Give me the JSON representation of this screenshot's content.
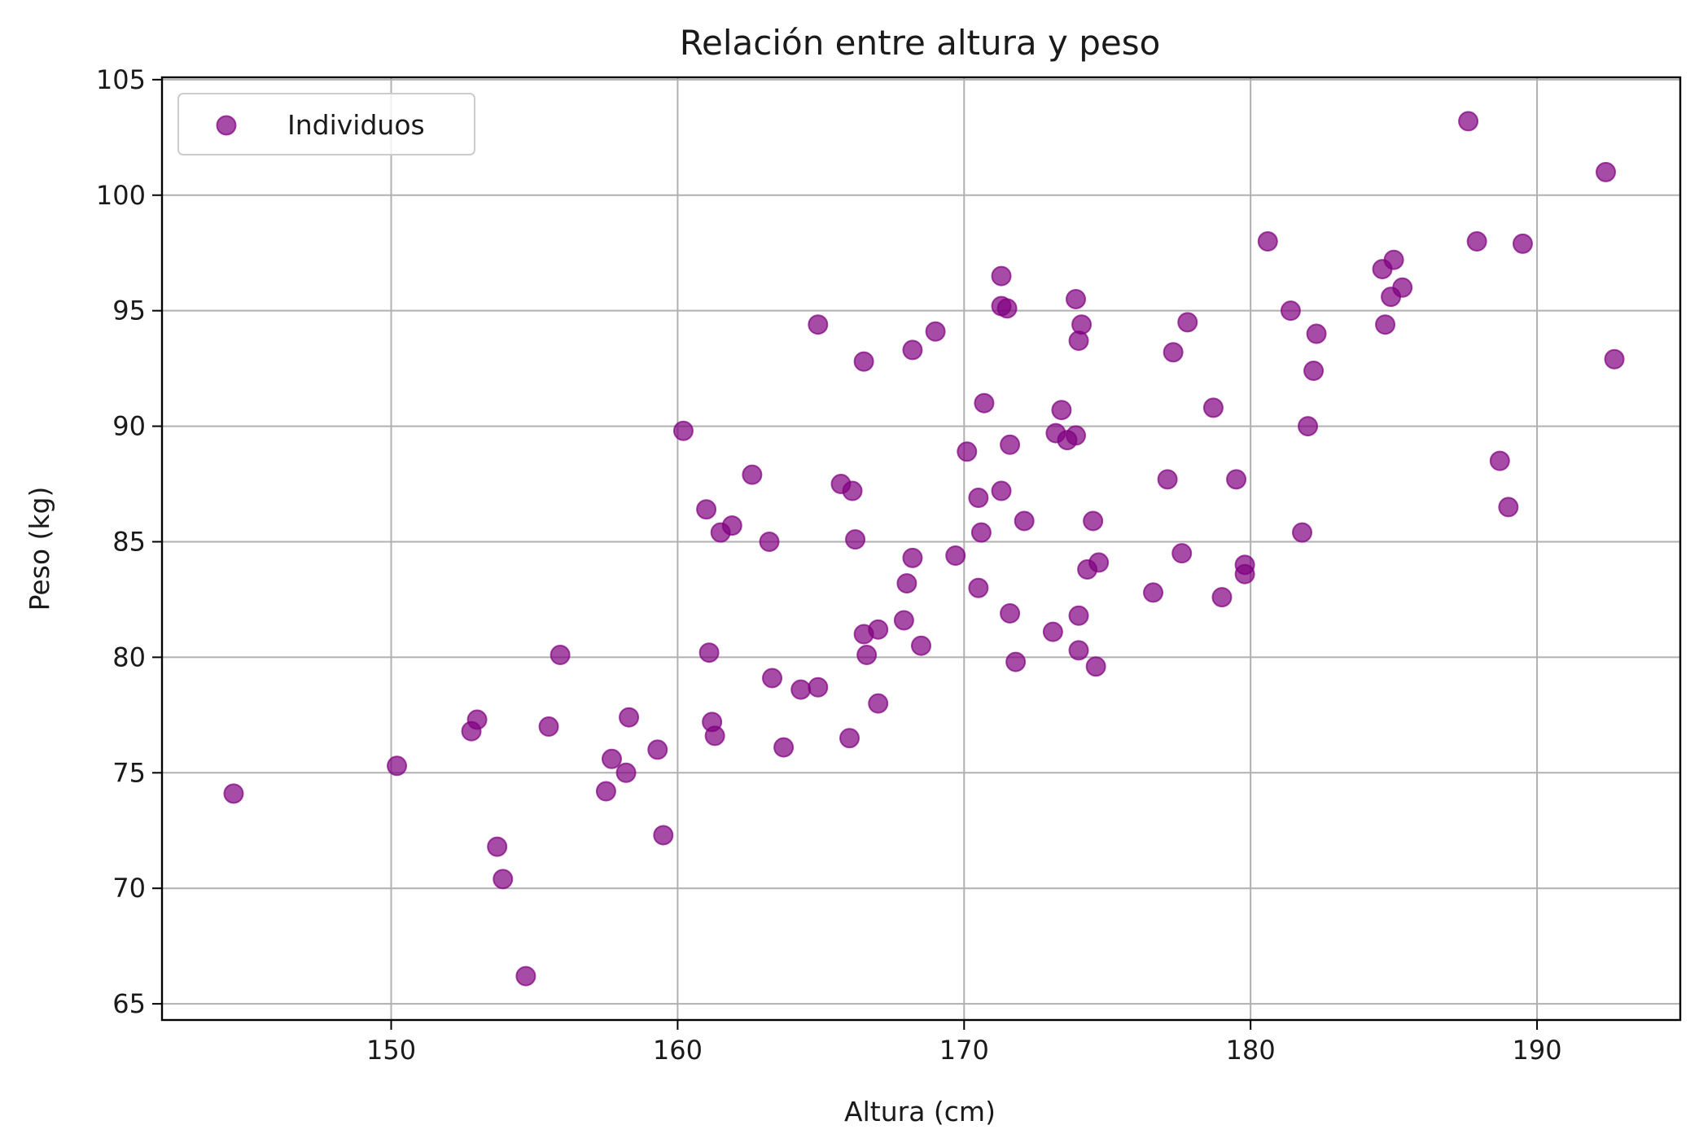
{
  "chart_data": {
    "type": "scatter",
    "title": "Relación entre altura y peso",
    "xlabel": "Altura (cm)",
    "ylabel": "Peso (kg)",
    "xlim": [
      142,
      195
    ],
    "ylim": [
      64.3,
      105.1
    ],
    "xticks": [
      150,
      160,
      170,
      180,
      190
    ],
    "yticks": [
      65,
      70,
      75,
      80,
      85,
      90,
      95,
      100,
      105
    ],
    "grid": true,
    "legend_position": "top-left",
    "colors": {
      "marker": "#800080"
    },
    "series": [
      {
        "name": "Individuos",
        "points": [
          [
            144.5,
            74.1
          ],
          [
            150.2,
            75.3
          ],
          [
            152.8,
            76.8
          ],
          [
            153.0,
            77.3
          ],
          [
            153.7,
            71.8
          ],
          [
            153.9,
            70.4
          ],
          [
            154.7,
            66.2
          ],
          [
            155.5,
            77.0
          ],
          [
            155.9,
            80.1
          ],
          [
            157.5,
            74.2
          ],
          [
            157.7,
            75.6
          ],
          [
            158.2,
            75.0
          ],
          [
            158.3,
            77.4
          ],
          [
            159.3,
            76.0
          ],
          [
            159.5,
            72.3
          ],
          [
            160.2,
            89.8
          ],
          [
            161.0,
            86.4
          ],
          [
            161.1,
            80.2
          ],
          [
            161.2,
            77.2
          ],
          [
            161.3,
            76.6
          ],
          [
            161.5,
            85.4
          ],
          [
            161.9,
            85.7
          ],
          [
            162.6,
            87.9
          ],
          [
            163.2,
            85.0
          ],
          [
            163.3,
            79.1
          ],
          [
            163.7,
            76.1
          ],
          [
            164.3,
            78.6
          ],
          [
            164.9,
            78.7
          ],
          [
            164.9,
            94.4
          ],
          [
            165.7,
            87.5
          ],
          [
            166.0,
            76.5
          ],
          [
            166.1,
            87.2
          ],
          [
            166.2,
            85.1
          ],
          [
            166.5,
            92.8
          ],
          [
            166.5,
            81.0
          ],
          [
            166.6,
            80.1
          ],
          [
            167.0,
            81.2
          ],
          [
            167.0,
            78.0
          ],
          [
            167.9,
            81.6
          ],
          [
            168.0,
            83.2
          ],
          [
            168.2,
            84.3
          ],
          [
            168.2,
            93.3
          ],
          [
            168.5,
            80.5
          ],
          [
            169.0,
            94.1
          ],
          [
            169.7,
            84.4
          ],
          [
            170.1,
            88.9
          ],
          [
            170.5,
            83.0
          ],
          [
            170.5,
            86.9
          ],
          [
            170.6,
            85.4
          ],
          [
            170.7,
            91.0
          ],
          [
            171.3,
            96.5
          ],
          [
            171.3,
            95.2
          ],
          [
            171.3,
            87.2
          ],
          [
            171.5,
            95.1
          ],
          [
            171.6,
            89.2
          ],
          [
            171.6,
            81.9
          ],
          [
            171.8,
            79.8
          ],
          [
            172.1,
            85.9
          ],
          [
            173.1,
            81.1
          ],
          [
            173.2,
            89.7
          ],
          [
            173.4,
            90.7
          ],
          [
            173.6,
            89.4
          ],
          [
            173.9,
            89.6
          ],
          [
            173.9,
            95.5
          ],
          [
            174.0,
            93.7
          ],
          [
            174.0,
            81.8
          ],
          [
            174.0,
            80.3
          ],
          [
            174.1,
            94.4
          ],
          [
            174.3,
            83.8
          ],
          [
            174.5,
            85.9
          ],
          [
            174.6,
            79.6
          ],
          [
            174.7,
            84.1
          ],
          [
            176.6,
            82.8
          ],
          [
            177.1,
            87.7
          ],
          [
            177.3,
            93.2
          ],
          [
            177.6,
            84.5
          ],
          [
            177.8,
            94.5
          ],
          [
            178.7,
            90.8
          ],
          [
            179.0,
            82.6
          ],
          [
            179.5,
            87.7
          ],
          [
            179.8,
            84.0
          ],
          [
            179.8,
            83.6
          ],
          [
            180.6,
            98.0
          ],
          [
            181.4,
            95.0
          ],
          [
            181.8,
            85.4
          ],
          [
            182.0,
            90.0
          ],
          [
            182.2,
            92.4
          ],
          [
            182.3,
            94.0
          ],
          [
            184.6,
            96.8
          ],
          [
            184.7,
            94.4
          ],
          [
            184.9,
            95.6
          ],
          [
            185.0,
            97.2
          ],
          [
            185.3,
            96.0
          ],
          [
            187.6,
            103.2
          ],
          [
            187.9,
            98.0
          ],
          [
            188.7,
            88.5
          ],
          [
            189.0,
            86.5
          ],
          [
            189.5,
            97.9
          ],
          [
            192.4,
            101.0
          ],
          [
            192.7,
            92.9
          ]
        ]
      }
    ]
  }
}
